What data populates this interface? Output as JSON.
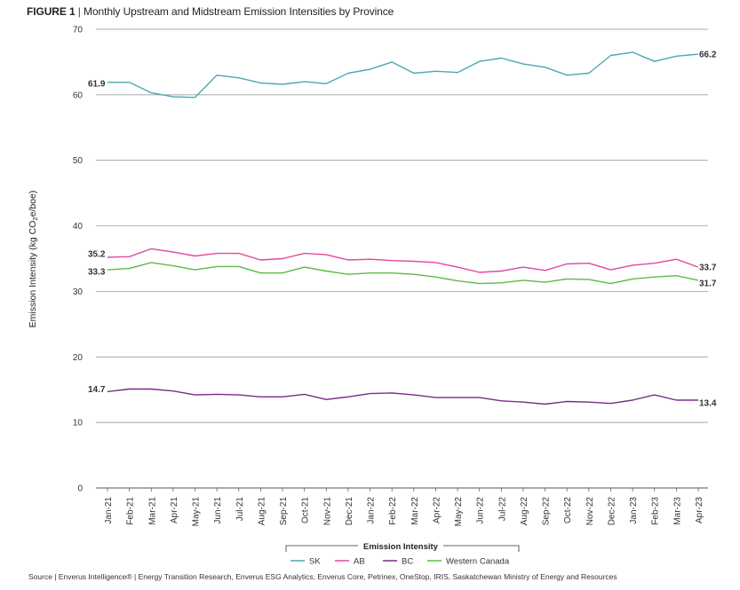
{
  "title": {
    "figure_label": "FIGURE 1",
    "separator": "|",
    "text": "Monthly Upstream and Midstream Emission Intensities by Province"
  },
  "source": "Source | Enverus Intelligence® | Energy Transition Research,  Enverus ESG Analytics, Enverus Core, Petrinex, OneStop, IRIS, Saskatchewan Ministry of Energy and Resources",
  "chart_data": {
    "type": "line",
    "title": "Monthly Upstream and Midstream Emission Intensities by Province",
    "ylabel": "Emission Intensity (kg CO",
    "ylabel_sub": "2",
    "ylabel_tail": "e/boe)",
    "xlabel": "",
    "ylim": [
      0,
      70
    ],
    "yticks": [
      0,
      10,
      20,
      30,
      40,
      50,
      60,
      70
    ],
    "grid": "horizontal",
    "legend_title": "Emission Intensity",
    "legend_position": "bottom-center",
    "categories": [
      "Jan-21",
      "Feb-21",
      "Mar-21",
      "Apr-21",
      "May-21",
      "Jun-21",
      "Jul-21",
      "Aug-21",
      "Sep-21",
      "Oct-21",
      "Nov-21",
      "Dec-21",
      "Jan-22",
      "Feb-22",
      "Mar-22",
      "Apr-22",
      "May-22",
      "Jun-22",
      "Jul-22",
      "Aug-22",
      "Sep-22",
      "Oct-22",
      "Nov-22",
      "Dec-22",
      "Jan-23",
      "Feb-23",
      "Mar-23",
      "Apr-23"
    ],
    "series": [
      {
        "name": "SK",
        "color": "#4aa8b5",
        "values": [
          61.9,
          61.9,
          60.3,
          59.7,
          59.6,
          63.0,
          62.6,
          61.8,
          61.6,
          62.0,
          61.7,
          63.3,
          63.9,
          65.0,
          63.3,
          63.6,
          63.4,
          65.1,
          65.6,
          64.7,
          64.2,
          63.0,
          63.3,
          66.0,
          66.5,
          65.1,
          65.9,
          66.2
        ],
        "labels": {
          "first": "61.9",
          "last": "66.2"
        }
      },
      {
        "name": "AB",
        "color": "#e2489f",
        "values": [
          35.2,
          35.3,
          36.5,
          36.0,
          35.4,
          35.8,
          35.8,
          34.8,
          35.0,
          35.8,
          35.6,
          34.8,
          34.9,
          34.7,
          34.6,
          34.4,
          33.7,
          32.9,
          33.1,
          33.7,
          33.2,
          34.2,
          34.3,
          33.3,
          34.0,
          34.3,
          34.9,
          33.7
        ],
        "labels": {
          "first": "35.2",
          "last": "33.7"
        }
      },
      {
        "name": "BC",
        "color": "#7b2a8c",
        "values": [
          14.7,
          15.1,
          15.1,
          14.8,
          14.2,
          14.3,
          14.2,
          13.9,
          13.9,
          14.3,
          13.5,
          13.9,
          14.4,
          14.5,
          14.2,
          13.8,
          13.8,
          13.8,
          13.3,
          13.1,
          12.8,
          13.2,
          13.1,
          12.9,
          13.4,
          14.2,
          13.4,
          13.4
        ],
        "labels": {
          "first": "14.7",
          "last": "13.4"
        }
      },
      {
        "name": "Western Canada",
        "color": "#5cba47",
        "values": [
          33.3,
          33.5,
          34.4,
          33.9,
          33.3,
          33.8,
          33.8,
          32.8,
          32.8,
          33.7,
          33.1,
          32.6,
          32.8,
          32.8,
          32.6,
          32.2,
          31.6,
          31.2,
          31.3,
          31.7,
          31.4,
          31.9,
          31.8,
          31.2,
          31.9,
          32.2,
          32.4,
          31.7
        ],
        "labels": {
          "first": "33.3",
          "last": "31.7"
        }
      }
    ]
  }
}
